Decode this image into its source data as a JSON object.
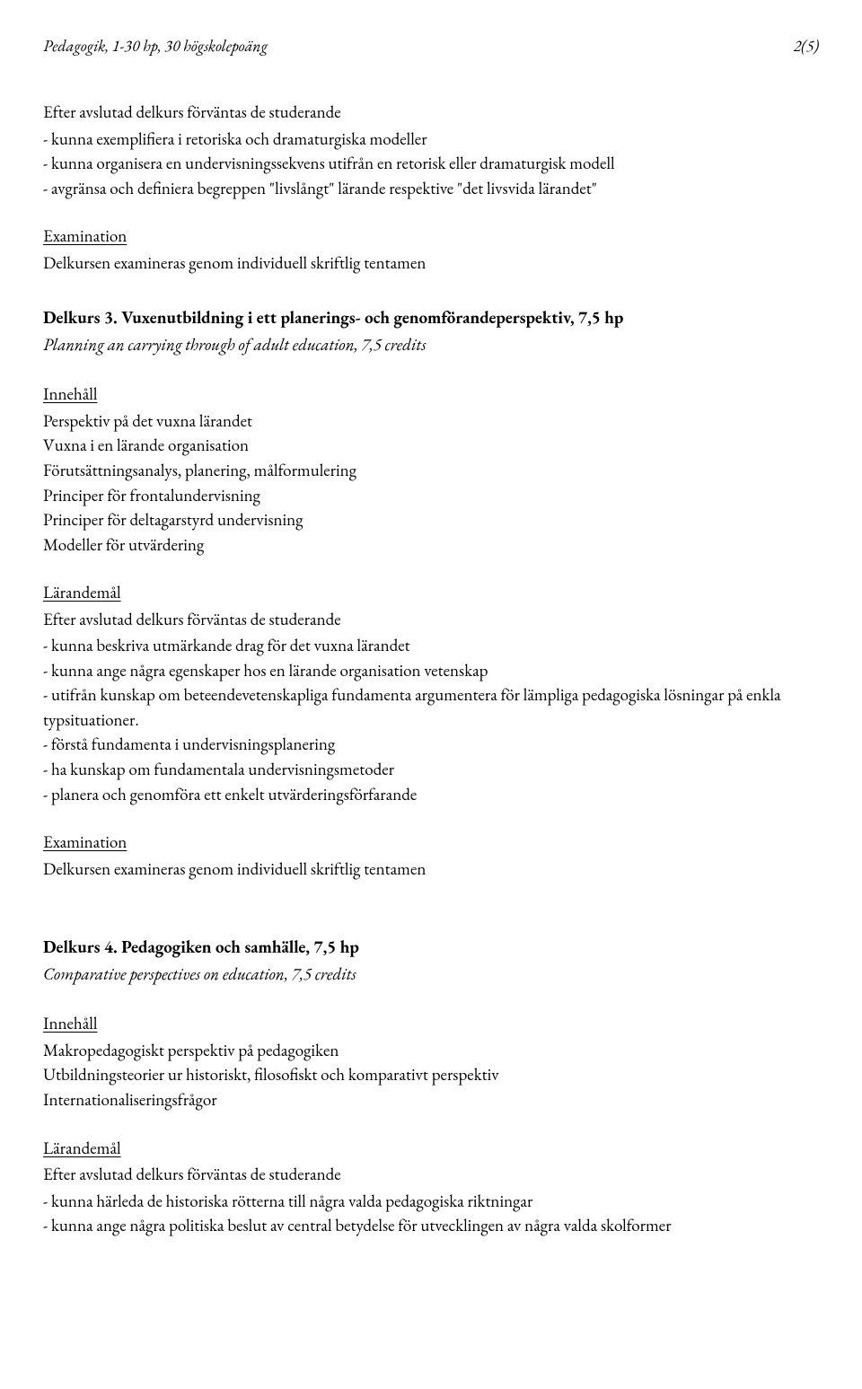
{
  "header": {
    "left": "Pedagogik, 1-30 hp, 30 högskolepoäng",
    "right": "2(5)"
  },
  "intro": {
    "heading": "Efter avslutad delkurs förväntas de studerande",
    "items": [
      "- kunna exemplifiera i retoriska och dramaturgiska modeller",
      "- kunna organisera en undervisningssekvens utifrån en retorisk eller dramaturgisk    modell",
      "- avgränsa och definiera begreppen \"livslångt\" lärande respektive \"det livsvida lärandet\""
    ]
  },
  "exam1": {
    "heading": "Examination",
    "text": "Delkursen examineras genom individuell skriftlig tentamen"
  },
  "delkurs3": {
    "title": "Delkurs 3. Vuxenutbildning i ett planerings- och genomförandeperspektiv, 7,5 hp",
    "subtitle": "Planning an carrying through of adult education, 7,5 credits",
    "innehall_heading": "Innehåll",
    "innehall_items": [
      "Perspektiv på det vuxna lärandet",
      "Vuxna i en lärande organisation",
      "Förutsättningsanalys, planering, målformulering",
      "Principer för frontalundervisning",
      "Principer för deltagarstyrd undervisning",
      "Modeller för utvärdering"
    ],
    "larandemal_heading": "Lärandemål",
    "larandemal_intro": "Efter avslutad delkurs förväntas de studerande",
    "larandemal_items": [
      "- kunna beskriva utmärkande drag för det vuxna lärandet",
      "- kunna ange några egenskaper hos en lärande organisation vetenskap",
      "- utifrån kunskap om beteendevetenskapliga fundamenta argumentera för lämpliga pedagogiska lösningar på enkla typsituationer.",
      "- förstå fundamenta i undervisningsplanering",
      "- ha kunskap om fundamentala undervisningsmetoder",
      "- planera och genomföra ett enkelt utvärderingsförfarande"
    ],
    "exam_heading": "Examination",
    "exam_text": "Delkursen examineras genom individuell skriftlig tentamen"
  },
  "delkurs4": {
    "title": "Delkurs 4. Pedagogiken och samhälle, 7,5 hp",
    "subtitle": "Comparative perspectives on education, 7,5 credits",
    "innehall_heading": "Innehåll",
    "innehall_items": [
      "Makropedagogiskt perspektiv på pedagogiken",
      "Utbildningsteorier ur historiskt, filosofiskt och komparativt perspektiv",
      "Internationaliseringsfrågor"
    ],
    "larandemal_heading": "Lärandemål",
    "larandemal_intro": "Efter avslutad delkurs förväntas de studerande",
    "larandemal_items": [
      "- kunna härleda de historiska rötterna till några valda pedagogiska riktningar",
      "- kunna ange några politiska beslut av central betydelse för utvecklingen av några valda skolformer"
    ]
  }
}
